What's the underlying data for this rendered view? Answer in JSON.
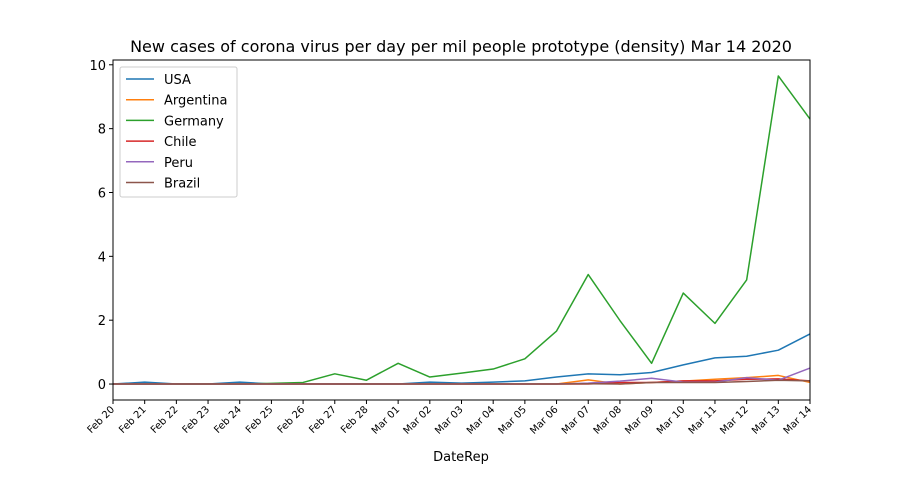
{
  "chart_data": {
    "type": "line",
    "title": "New cases of corona virus per day per mil people prototype (density)  Mar 14 2020",
    "xlabel": "DateRep",
    "ylabel": "",
    "ylim": [
      -0.5,
      10.15
    ],
    "yticks": [
      0,
      2,
      4,
      6,
      8,
      10
    ],
    "grid": false,
    "legend_position": "top-left",
    "categories": [
      "Feb 20",
      "Feb 21",
      "Feb 22",
      "Feb 23",
      "Feb 24",
      "Feb 25",
      "Feb 26",
      "Feb 27",
      "Feb 28",
      "Mar 01",
      "Mar 02",
      "Mar 03",
      "Mar 04",
      "Mar 05",
      "Mar 06",
      "Mar 07",
      "Mar 08",
      "Mar 09",
      "Mar 10",
      "Mar 11",
      "Mar 12",
      "Mar 13",
      "Mar 14"
    ],
    "series": [
      {
        "name": "USA",
        "color": "#1f77b4",
        "values": [
          0,
          0.06,
          0,
          0,
          0.06,
          0,
          0,
          0,
          0,
          0,
          0.06,
          0.03,
          0.06,
          0.1,
          0.22,
          0.32,
          0.29,
          0.36,
          0.6,
          0.82,
          0.87,
          1.06,
          1.57
        ]
      },
      {
        "name": "Argentina",
        "color": "#ff7f0e",
        "values": [
          0,
          0,
          0,
          0,
          0,
          0,
          0,
          0,
          0,
          0,
          0,
          0,
          0,
          0,
          0,
          0.13,
          0,
          0.05,
          0.09,
          0.15,
          0.2,
          0.27,
          0.05
        ]
      },
      {
        "name": "Germany",
        "color": "#2ca02c",
        "values": [
          0,
          0,
          0,
          0,
          0,
          0.02,
          0.05,
          0.32,
          0.12,
          0.65,
          0.22,
          0.34,
          0.47,
          0.79,
          1.66,
          3.43,
          1.99,
          0.65,
          2.85,
          1.9,
          3.26,
          9.65,
          8.3
        ]
      },
      {
        "name": "Chile",
        "color": "#d62728",
        "values": [
          0,
          0,
          0,
          0,
          0,
          0,
          0,
          0,
          0,
          0,
          0,
          0,
          0,
          0,
          0,
          0,
          0.05,
          0.05,
          0.1,
          0.1,
          0.15,
          0.16,
          0.1
        ]
      },
      {
        "name": "Peru",
        "color": "#9467bd",
        "values": [
          0,
          0,
          0,
          0,
          0,
          0,
          0,
          0,
          0,
          0,
          0,
          0,
          0,
          0,
          0,
          0.03,
          0.09,
          0.18,
          0.06,
          0.06,
          0.2,
          0.12,
          0.5
        ]
      },
      {
        "name": "Brazil",
        "color": "#8c564b",
        "values": [
          0,
          0,
          0,
          0,
          0,
          0,
          0,
          0,
          0,
          0,
          0,
          0,
          0,
          0,
          0,
          0.01,
          0,
          0.05,
          0.05,
          0.05,
          0.08,
          0.12,
          0.1
        ]
      }
    ]
  }
}
